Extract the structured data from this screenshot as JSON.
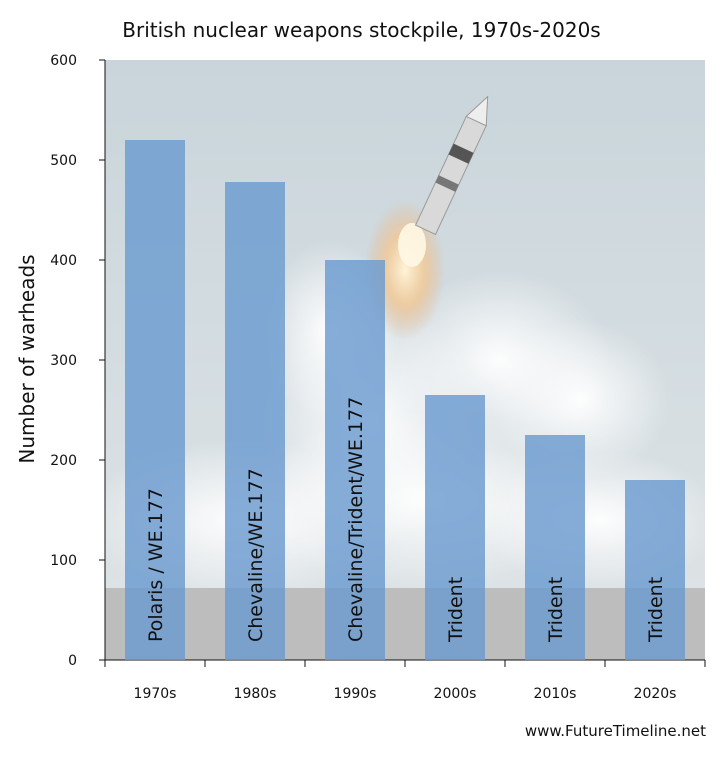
{
  "chart_data": {
    "type": "bar",
    "title": "British nuclear weapons stockpile, 1970s-2020s",
    "ylabel": "Number of warheads",
    "xlabel": "",
    "ylim": [
      0,
      600
    ],
    "yticks": [
      0,
      100,
      200,
      300,
      400,
      500,
      600
    ],
    "categories": [
      "1970s",
      "1980s",
      "1990s",
      "2000s",
      "2010s",
      "2020s"
    ],
    "values": [
      520,
      478,
      400,
      265,
      225,
      180
    ],
    "bar_labels": [
      "Polaris / WE.177",
      "Chevaline/WE.177",
      "Chevaline/Trident/WE.177",
      "Trident",
      "Trident",
      "Trident"
    ],
    "grid": false,
    "legend": "none",
    "bar_color": "#6b9bd0"
  },
  "footer": {
    "source": "www.FutureTimeline.net"
  },
  "background": {
    "sky_color": "#cbd6dc",
    "ground_color": "#bdbdbd"
  }
}
